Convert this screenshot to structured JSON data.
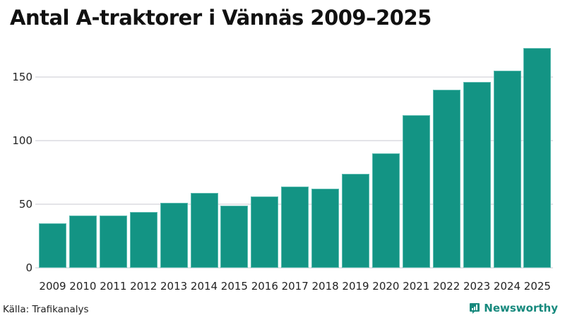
{
  "title": "Antal A-traktorer i Vännäs 2009–2025",
  "source": "Källa: Trafikanalys",
  "brand": "Newsworthy",
  "colors": {
    "bar": "#139484",
    "brand": "#16897d",
    "grid": "#e4e4e8"
  },
  "y_ticks": [
    "0",
    "50",
    "100",
    "150"
  ],
  "chart_data": {
    "type": "bar",
    "title": "Antal A-traktorer i Vännäs 2009–2025",
    "xlabel": "",
    "ylabel": "",
    "categories": [
      "2009",
      "2010",
      "2011",
      "2012",
      "2013",
      "2014",
      "2015",
      "2016",
      "2017",
      "2018",
      "2019",
      "2020",
      "2021",
      "2022",
      "2023",
      "2024",
      "2025"
    ],
    "values": [
      35,
      41,
      41,
      44,
      51,
      59,
      49,
      56,
      64,
      62,
      74,
      90,
      120,
      140,
      146,
      155,
      173
    ],
    "ylim": [
      0,
      175
    ],
    "y_ticks": [
      0,
      50,
      100,
      150
    ],
    "grid": true,
    "legend": "none"
  }
}
